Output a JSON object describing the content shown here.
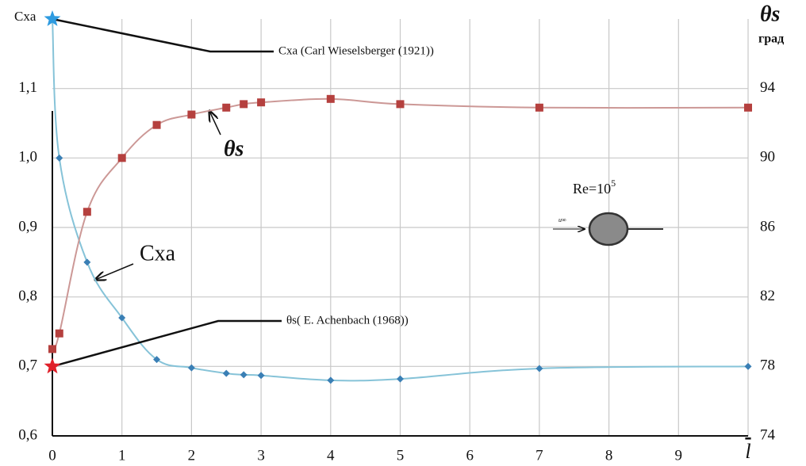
{
  "chart_data": {
    "type": "line",
    "y_label": "Cxa",
    "y2_label": "θs",
    "y2_unit": "град",
    "xlim": [
      0,
      10
    ],
    "xticks": [
      0,
      1,
      2,
      3,
      4,
      5,
      6,
      7,
      8,
      9,
      {
        "value": 10,
        "label": "l"
      }
    ],
    "ylim": [
      0.6,
      1.2
    ],
    "yticks": [
      {
        "value": 0.6,
        "label": "0,6"
      },
      {
        "value": 0.7,
        "label": "0,7"
      },
      {
        "value": 0.8,
        "label": "0,8"
      },
      {
        "value": 0.9,
        "label": "0,9"
      },
      {
        "value": 1.0,
        "label": "1,0"
      },
      {
        "value": 1.1,
        "label": "1,1"
      }
    ],
    "y2lim": [
      74,
      98
    ],
    "y2ticks": [
      74,
      78,
      82,
      86,
      90,
      94
    ],
    "grid": true,
    "series": [
      {
        "name": "Cxa",
        "color": "#3a7fb5",
        "line_color": "#86c3d8",
        "marker": "diamond",
        "x": [
          0,
          0.1,
          0.5,
          1,
          1.5,
          2,
          2.5,
          2.75,
          3,
          4,
          5,
          7,
          10
        ],
        "values": [
          1.2,
          1.0,
          0.85,
          0.77,
          0.71,
          0.698,
          0.69,
          0.688,
          0.687,
          0.68,
          0.682,
          0.697,
          0.7
        ]
      },
      {
        "name": "θs",
        "color": "#b5403e",
        "line_color": "#cc9896",
        "marker": "square",
        "axis": "y2",
        "x": [
          0,
          0.1,
          0.5,
          1,
          1.5,
          2,
          2.5,
          2.75,
          3,
          4,
          5,
          7,
          10
        ],
        "values": [
          79.0,
          79.9,
          86.9,
          90,
          91.9,
          92.5,
          92.9,
          93.1,
          93.2,
          93.4,
          93.1,
          92.9,
          92.9
        ]
      }
    ],
    "annotations": [
      {
        "text": "Cxa (Carl Wieselsberger (1921))",
        "x": 0,
        "y": 1.2,
        "color": "#2e9be0"
      },
      {
        "text": "θs( E. Achenbach (1968))",
        "x": 0,
        "y": 78,
        "axis": "y2",
        "color": "#e0202a"
      }
    ],
    "inset": {
      "label": "Re=10",
      "exponent": "5",
      "flow_label": "u∞"
    }
  }
}
